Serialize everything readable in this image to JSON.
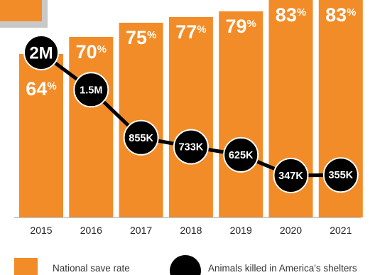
{
  "chart_data": {
    "type": "bar",
    "categories": [
      "2015",
      "2016",
      "2017",
      "2018",
      "2019",
      "2020",
      "2021"
    ],
    "series": [
      {
        "name": "National save rate",
        "type": "bar",
        "values": [
          64,
          70,
          75,
          77,
          79,
          83,
          83
        ],
        "labels": [
          "64",
          "70",
          "75",
          "77",
          "79",
          "83",
          "83"
        ],
        "unit": "%",
        "color": "#F28C28"
      },
      {
        "name": "Animals killed in America's shelters",
        "type": "line",
        "values": [
          2000000,
          1500000,
          855000,
          733000,
          625000,
          347000,
          355000
        ],
        "labels": [
          "2M",
          "1.5M",
          "855K",
          "733K",
          "625K",
          "347K",
          "355K"
        ],
        "color": "#000000"
      }
    ],
    "ylim": [
      0,
      83
    ],
    "grid": false,
    "legend": {
      "position": "bottom"
    }
  },
  "colors": {
    "bar": "#F28C28",
    "bar_text": "#FFFFFF",
    "marker": "#000000",
    "marker_ring": "#FFFFFF",
    "accent_banner": "#F28C28",
    "banner_border": "#C8C8C8",
    "axis_line": "#9A9A9A"
  }
}
